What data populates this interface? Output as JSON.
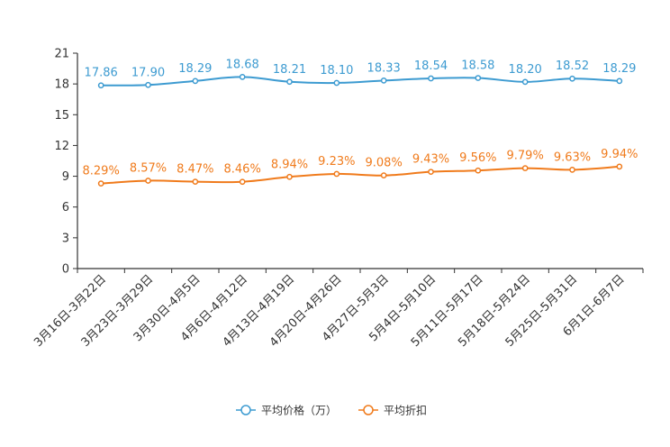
{
  "chart_data": {
    "type": "line",
    "title": "",
    "xlabel": "",
    "ylabel": "",
    "ylim": [
      0,
      21
    ],
    "yticks": [
      0,
      3,
      6,
      9,
      12,
      15,
      18,
      21
    ],
    "grid": false,
    "legend_position": "bottom-center",
    "categories": [
      "3月16日-3月22日",
      "3月23日-3月29日",
      "3月30日-4月5日",
      "4月6日-4月12日",
      "4月13日-4月19日",
      "4月20日-4月26日",
      "4月27日-5月3日",
      "5月4日-5月10日",
      "5月11日-5月17日",
      "5月18日-5月24日",
      "5月25日-5月31日",
      "6月1日-6月7日"
    ],
    "series": [
      {
        "name": "平均价格（万）",
        "color": "#3d9bd1",
        "values": [
          17.86,
          17.9,
          18.29,
          18.68,
          18.21,
          18.1,
          18.33,
          18.54,
          18.58,
          18.2,
          18.52,
          18.29
        ],
        "labels": [
          "17.86",
          "17.90",
          "18.29",
          "18.68",
          "18.21",
          "18.10",
          "18.33",
          "18.54",
          "18.58",
          "18.20",
          "18.52",
          "18.29"
        ]
      },
      {
        "name": "平均折扣",
        "color": "#f07b1c",
        "values": [
          8.29,
          8.57,
          8.47,
          8.46,
          8.94,
          9.23,
          9.08,
          9.43,
          9.56,
          9.79,
          9.63,
          9.94
        ],
        "labels": [
          "8.29%",
          "8.57%",
          "8.47%",
          "8.46%",
          "8.94%",
          "9.23%",
          "9.08%",
          "9.43%",
          "9.56%",
          "9.79%",
          "9.63%",
          "9.94%"
        ]
      }
    ]
  }
}
